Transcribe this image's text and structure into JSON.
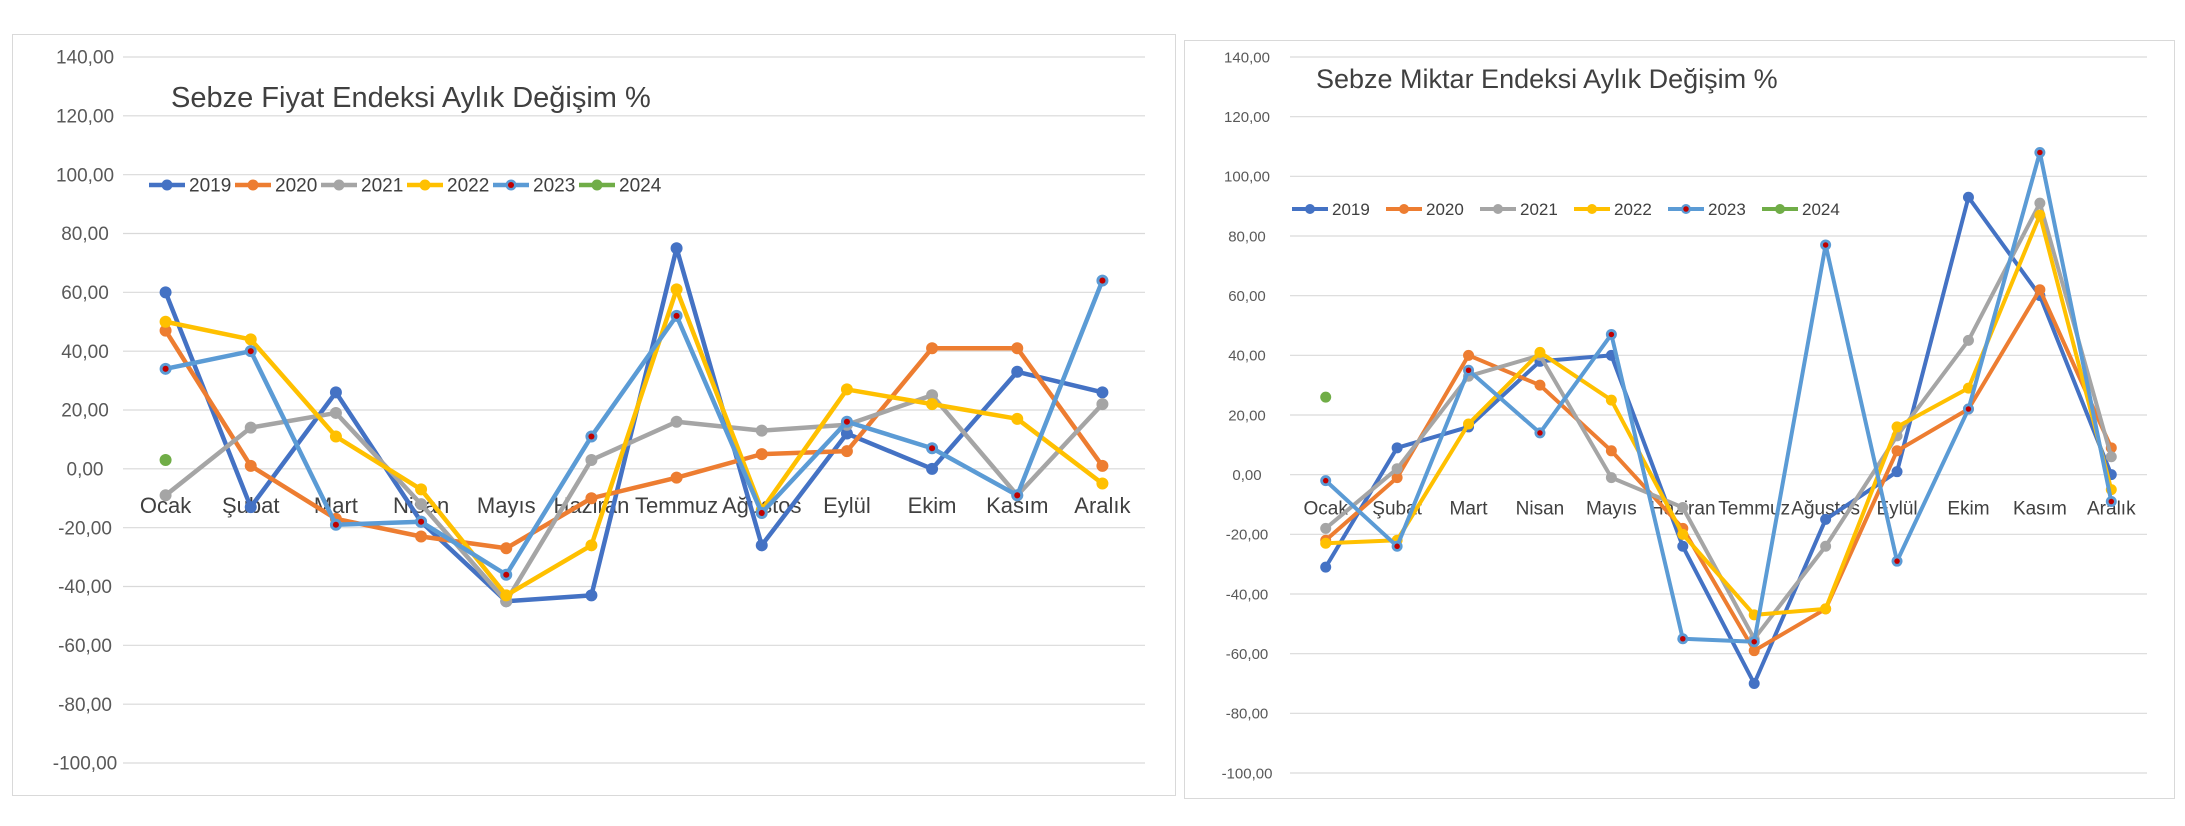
{
  "chart_data": [
    {
      "type": "line",
      "title": "Sebze Fiyat Endeksi Aylık Değişim %",
      "xlabel": "",
      "ylabel": "",
      "ylim": [
        -100,
        140
      ],
      "y_ticks": [
        "140,00",
        "120,00",
        "100,00",
        "80,00",
        "60,00",
        "40,00",
        "20,00",
        "0,00",
        "-20,00",
        "-40,00",
        "-60,00",
        "-80,00",
        "-100,00"
      ],
      "categories": [
        "Ocak",
        "Şubat",
        "Mart",
        "Nisan",
        "Mayıs",
        "Haziran",
        "Temmuz",
        "Ağustos",
        "Eylül",
        "Ekim",
        "Kasım",
        "Aralık"
      ],
      "grid": true,
      "legend": "top-left",
      "series": [
        {
          "name": "2019",
          "color": "#4472C4",
          "values": [
            60,
            -13,
            26,
            -18,
            -45,
            -43,
            75,
            -26,
            12,
            0,
            33,
            26
          ]
        },
        {
          "name": "2020",
          "color": "#ED7D31",
          "values": [
            47,
            1,
            -17,
            -23,
            -27,
            -10,
            -3,
            5,
            6,
            41,
            41,
            1
          ]
        },
        {
          "name": "2021",
          "color": "#A5A5A5",
          "values": [
            -9,
            14,
            19,
            -12,
            -45,
            3,
            16,
            13,
            15,
            25,
            -9,
            22
          ]
        },
        {
          "name": "2022",
          "color": "#FFC000",
          "values": [
            50,
            44,
            11,
            -7,
            -43,
            -26,
            61,
            -14,
            27,
            22,
            17,
            -5
          ]
        },
        {
          "name": "2023",
          "color": "#5B9BD5",
          "values": [
            34,
            40,
            -19,
            -18,
            -36,
            11,
            52,
            -15,
            16,
            7,
            -9,
            64
          ]
        },
        {
          "name": "2024",
          "color": "#70AD47",
          "values": [
            3,
            null,
            null,
            null,
            null,
            null,
            null,
            null,
            null,
            null,
            null,
            null
          ]
        }
      ]
    },
    {
      "type": "line",
      "title": "Sebze Miktar Endeksi Aylık Değişim %",
      "xlabel": "",
      "ylabel": "",
      "ylim": [
        -100,
        140
      ],
      "y_ticks": [
        "140,00",
        "120,00",
        "100,00",
        "80,00",
        "60,00",
        "40,00",
        "20,00",
        "0,00",
        "-20,00",
        "-40,00",
        "-60,00",
        "-80,00",
        "-100,00"
      ],
      "categories": [
        "Ocak",
        "Şubat",
        "Mart",
        "Nisan",
        "Mayıs",
        "Haziran",
        "Temmuz",
        "Ağustos",
        "Eylül",
        "Ekim",
        "Kasım",
        "Aralık"
      ],
      "grid": true,
      "legend": "top-left",
      "series": [
        {
          "name": "2019",
          "color": "#4472C4",
          "values": [
            -31,
            9,
            16,
            38,
            40,
            -24,
            -70,
            -15,
            1,
            93,
            60,
            0
          ]
        },
        {
          "name": "2020",
          "color": "#ED7D31",
          "values": [
            -22,
            -1,
            40,
            30,
            8,
            -18,
            -59,
            -45,
            8,
            22,
            62,
            9
          ]
        },
        {
          "name": "2021",
          "color": "#A5A5A5",
          "values": [
            -18,
            2,
            33,
            40,
            -1,
            -11,
            -55,
            -24,
            13,
            45,
            91,
            6
          ]
        },
        {
          "name": "2022",
          "color": "#FFC000",
          "values": [
            -23,
            -22,
            17,
            41,
            25,
            -20,
            -47,
            -45,
            16,
            29,
            87,
            -5
          ]
        },
        {
          "name": "2023",
          "color": "#5B9BD5",
          "values": [
            -2,
            -24,
            35,
            14,
            47,
            -55,
            -56,
            77,
            -29,
            22,
            108,
            -9
          ]
        },
        {
          "name": "2024",
          "color": "#70AD47",
          "values": [
            26,
            null,
            null,
            null,
            null,
            null,
            null,
            null,
            null,
            null,
            null,
            null
          ]
        }
      ]
    }
  ]
}
